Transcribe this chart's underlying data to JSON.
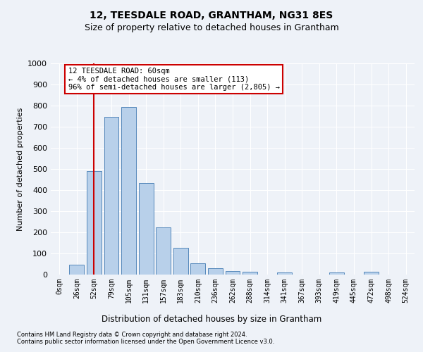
{
  "title": "12, TEESDALE ROAD, GRANTHAM, NG31 8ES",
  "subtitle": "Size of property relative to detached houses in Grantham",
  "xlabel": "Distribution of detached houses by size in Grantham",
  "ylabel": "Number of detached properties",
  "bar_labels": [
    "0sqm",
    "26sqm",
    "52sqm",
    "79sqm",
    "105sqm",
    "131sqm",
    "157sqm",
    "183sqm",
    "210sqm",
    "236sqm",
    "262sqm",
    "288sqm",
    "314sqm",
    "341sqm",
    "367sqm",
    "393sqm",
    "419sqm",
    "445sqm",
    "472sqm",
    "498sqm",
    "524sqm"
  ],
  "bar_values": [
    0,
    47,
    490,
    748,
    793,
    435,
    222,
    128,
    52,
    30,
    18,
    12,
    0,
    10,
    0,
    0,
    10,
    0,
    12,
    0,
    0
  ],
  "bar_color": "#b8d0ea",
  "bar_edge_color": "#5588bb",
  "vline_color": "#cc0000",
  "ylim": [
    0,
    1000
  ],
  "yticks": [
    0,
    100,
    200,
    300,
    400,
    500,
    600,
    700,
    800,
    900,
    1000
  ],
  "annotation_text": "12 TEESDALE ROAD: 60sqm\n← 4% of detached houses are smaller (113)\n96% of semi-detached houses are larger (2,805) →",
  "annotation_box_color": "#ffffff",
  "annotation_box_edge": "#cc0000",
  "footer_line1": "Contains HM Land Registry data © Crown copyright and database right 2024.",
  "footer_line2": "Contains public sector information licensed under the Open Government Licence v3.0.",
  "bg_color": "#eef2f8",
  "grid_color": "#ffffff",
  "title_fontsize": 10,
  "subtitle_fontsize": 9,
  "tick_fontsize": 7,
  "ylabel_fontsize": 8,
  "xlabel_fontsize": 8.5,
  "footer_fontsize": 6
}
